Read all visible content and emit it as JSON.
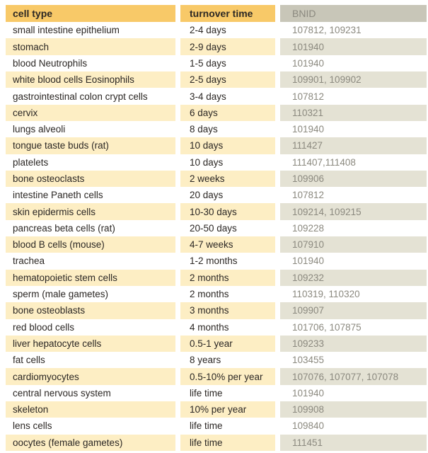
{
  "table": {
    "columns": [
      {
        "label": "cell type"
      },
      {
        "label": "turnover time"
      },
      {
        "label": "BNID"
      }
    ],
    "rows": [
      {
        "cell_type": "small intestine epithelium",
        "turnover_time": "2-4 days",
        "bnid": "107812, 109231"
      },
      {
        "cell_type": "stomach",
        "turnover_time": "2-9 days",
        "bnid": "101940"
      },
      {
        "cell_type": "blood Neutrophils",
        "turnover_time": "1-5 days",
        "bnid": "101940"
      },
      {
        "cell_type": "white blood cells Eosinophils",
        "turnover_time": "2-5 days",
        "bnid": "109901, 109902"
      },
      {
        "cell_type": "gastrointestinal colon crypt cells",
        "turnover_time": "3-4 days",
        "bnid": "107812"
      },
      {
        "cell_type": "cervix",
        "turnover_time": "6 days",
        "bnid": "110321"
      },
      {
        "cell_type": "lungs alveoli",
        "turnover_time": "8 days",
        "bnid": "101940"
      },
      {
        "cell_type": "tongue taste buds (rat)",
        "turnover_time": "10 days",
        "bnid": "111427"
      },
      {
        "cell_type": "platelets",
        "turnover_time": "10 days",
        "bnid": "111407,111408"
      },
      {
        "cell_type": "bone osteoclasts",
        "turnover_time": "2 weeks",
        "bnid": "109906"
      },
      {
        "cell_type": "intestine Paneth cells",
        "turnover_time": "20 days",
        "bnid": "107812"
      },
      {
        "cell_type": "skin epidermis cells",
        "turnover_time": "10-30 days",
        "bnid": "109214, 109215"
      },
      {
        "cell_type": "pancreas beta cells (rat)",
        "turnover_time": "20-50 days",
        "bnid": "109228"
      },
      {
        "cell_type": "blood B cells (mouse)",
        "turnover_time": "4-7 weeks",
        "bnid": "107910"
      },
      {
        "cell_type": "trachea",
        "turnover_time": "1-2 months",
        "bnid": "101940"
      },
      {
        "cell_type": "hematopoietic stem cells",
        "turnover_time": "2 months",
        "bnid": "109232"
      },
      {
        "cell_type": "sperm (male gametes)",
        "turnover_time": "2 months",
        "bnid": "110319, 110320"
      },
      {
        "cell_type": "bone osteoblasts",
        "turnover_time": "3 months",
        "bnid": "109907"
      },
      {
        "cell_type": "red blood cells",
        "turnover_time": "4 months",
        "bnid": "101706, 107875"
      },
      {
        "cell_type": "liver hepatocyte cells",
        "turnover_time": "0.5-1 year",
        "bnid": "109233"
      },
      {
        "cell_type": "fat cells",
        "turnover_time": "8 years",
        "bnid": "103455"
      },
      {
        "cell_type": "cardiomyocytes",
        "turnover_time": "0.5-10% per year",
        "bnid": "107076, 107077, 107078"
      },
      {
        "cell_type": "central nervous system",
        "turnover_time": "life time",
        "bnid": "101940"
      },
      {
        "cell_type": "skeleton",
        "turnover_time": "10% per year",
        "bnid": "109908"
      },
      {
        "cell_type": "lens cells",
        "turnover_time": "life time",
        "bnid": "109840"
      },
      {
        "cell_type": "oocytes (female gametes)",
        "turnover_time": "life time",
        "bnid": "111451"
      }
    ]
  },
  "colors": {
    "header_gold": "#f8c968",
    "row_yellow": "#fdeec4",
    "bnid_header_bg": "#c8c6b8",
    "bnid_cell_bg": "#e4e2d4",
    "text_dark": "#2b2724",
    "text_gray": "#8b897f"
  }
}
